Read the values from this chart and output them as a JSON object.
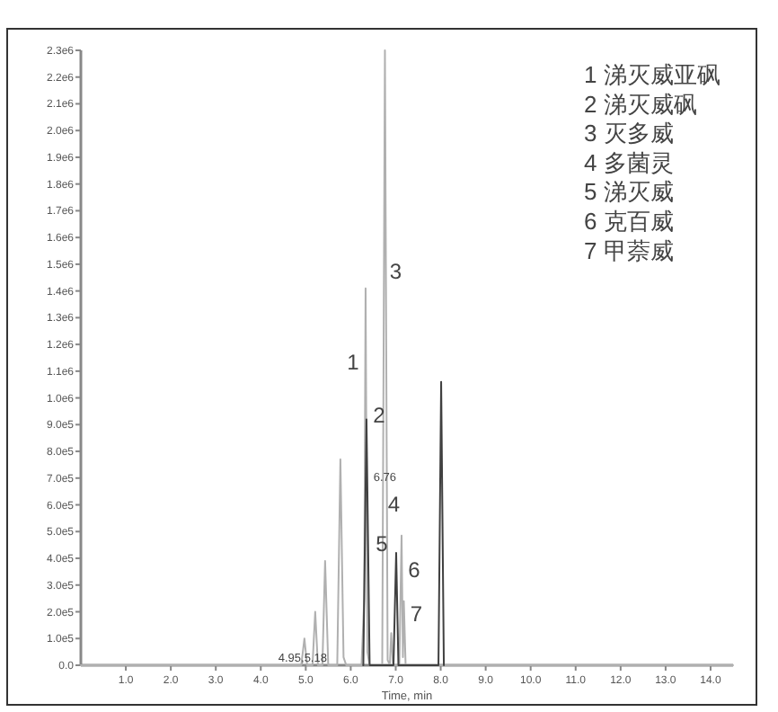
{
  "chart_data": {
    "type": "line",
    "xlabel": "Time, min",
    "xlim": [
      0,
      14.5
    ],
    "xticks": [
      {
        "value": 1,
        "label": "1.0"
      },
      {
        "value": 2,
        "label": "2.0"
      },
      {
        "value": 3,
        "label": "3.0"
      },
      {
        "value": 4,
        "label": "4.0"
      },
      {
        "value": 5,
        "label": "5.0"
      },
      {
        "value": 6,
        "label": "6.0"
      },
      {
        "value": 7,
        "label": "7.0"
      },
      {
        "value": 8,
        "label": "8.0"
      },
      {
        "value": 9,
        "label": "9.0"
      },
      {
        "value": 10,
        "label": "10.0"
      },
      {
        "value": 11,
        "label": "11.0"
      },
      {
        "value": 12,
        "label": "12.0"
      },
      {
        "value": 13,
        "label": "13.0"
      },
      {
        "value": 14,
        "label": "14.0"
      }
    ],
    "ylim": [
      0,
      2300000
    ],
    "yticks": [
      {
        "value": 0,
        "label": "0.0"
      },
      {
        "value": 100000,
        "label": "1.0e5"
      },
      {
        "value": 200000,
        "label": "2.0e5"
      },
      {
        "value": 300000,
        "label": "3.0e5"
      },
      {
        "value": 400000,
        "label": "4.0e5"
      },
      {
        "value": 500000,
        "label": "5.0e5"
      },
      {
        "value": 600000,
        "label": "6.0e5"
      },
      {
        "value": 700000,
        "label": "7.0e5"
      },
      {
        "value": 800000,
        "label": "8.0e5"
      },
      {
        "value": 900000,
        "label": "9.0e5"
      },
      {
        "value": 1000000,
        "label": "1.0e6"
      },
      {
        "value": 1100000,
        "label": "1.1e6"
      },
      {
        "value": 1200000,
        "label": "1.2e6"
      },
      {
        "value": 1300000,
        "label": "1.3e6"
      },
      {
        "value": 1400000,
        "label": "1.4e6"
      },
      {
        "value": 1500000,
        "label": "1.5e6"
      },
      {
        "value": 1600000,
        "label": "1.6e6"
      },
      {
        "value": 1700000,
        "label": "1.7e6"
      },
      {
        "value": 1800000,
        "label": "1.8e6"
      },
      {
        "value": 1900000,
        "label": "1.9e6"
      },
      {
        "value": 2000000,
        "label": "2.0e6"
      },
      {
        "value": 2100000,
        "label": "2.1e6"
      },
      {
        "value": 2200000,
        "label": "2.2e6"
      },
      {
        "value": 2300000,
        "label": "2.3e6"
      }
    ],
    "grid": false,
    "marker": "none",
    "line_style": "solid",
    "series": [
      {
        "color": "#b0b0b0",
        "x": [
          0,
          4.9,
          4.97,
          5.03,
          5.15,
          5.21,
          5.27,
          5.37,
          5.43,
          5.5,
          5.7,
          5.77,
          5.84,
          5.9,
          6.24,
          6.3,
          6.33,
          6.37,
          6.42,
          6.7,
          6.76,
          6.82,
          6.87,
          6.9,
          6.94,
          7.08,
          7.13,
          7.16,
          7.18,
          7.22,
          7.3,
          14.5
        ],
        "values": [
          0,
          0,
          100000,
          0,
          0,
          200000,
          0,
          0,
          390000,
          0,
          0,
          770000,
          30000,
          0,
          0,
          250000,
          1410000,
          50000,
          0,
          0,
          2300000,
          20000,
          0,
          120000,
          0,
          0,
          485000,
          30000,
          240000,
          0,
          0,
          0
        ]
      },
      {
        "color": "#404040",
        "x": [
          6.28,
          6.35,
          6.42,
          6.95,
          7.01,
          7.06,
          7.95,
          8.01,
          8.07
        ],
        "values": [
          0,
          920000,
          0,
          0,
          420000,
          0,
          0,
          1060000,
          0
        ]
      }
    ],
    "annotations": [
      {
        "text": "1",
        "x": 6.33,
        "y": 1410000
      },
      {
        "text": "2",
        "x": 6.35,
        "y": 920000
      },
      {
        "text": "3",
        "x": 6.76,
        "y": 1480000
      },
      {
        "text": "6.76",
        "x": 6.76,
        "y": 690000
      },
      {
        "text": "4",
        "x": 6.76,
        "y": 590000
      },
      {
        "text": "5",
        "x": 7.01,
        "y": 420000
      },
      {
        "text": "6",
        "x": 7.13,
        "y": 485000
      },
      {
        "text": "7",
        "x": 7.18,
        "y": 240000
      },
      {
        "text": "4.95,5.18",
        "x": 4.97,
        "y": 100000
      },
      "1 涕灭威亚砜",
      "2 涕灭威砜",
      "3 灭多威",
      "4 多菌灵",
      "5 涕灭威",
      "6 克百威",
      "7 甲萘威"
    ]
  }
}
